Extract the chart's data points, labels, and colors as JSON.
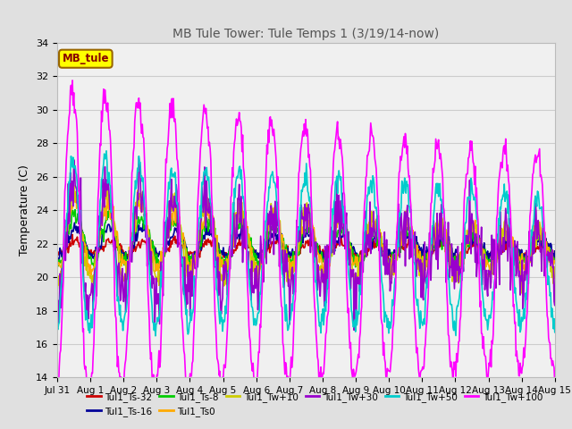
{
  "title": "MB Tule Tower: Tule Temps 1 (3/19/14-now)",
  "ylabel": "Temperature (C)",
  "ylim": [
    14,
    34
  ],
  "yticks": [
    14,
    16,
    18,
    20,
    22,
    24,
    26,
    28,
    30,
    32,
    34
  ],
  "legend_box_label": "MB_tule",
  "legend_box_color": "#ffff00",
  "legend_box_border": "#996600",
  "series": [
    {
      "label": "Tul1_Ts-32",
      "color": "#cc0000"
    },
    {
      "label": "Tul1_Ts-16",
      "color": "#000099"
    },
    {
      "label": "Tul1_Ts-8",
      "color": "#00cc00"
    },
    {
      "label": "Tul1_Ts0",
      "color": "#ffaa00"
    },
    {
      "label": "Tul1_Tw+10",
      "color": "#cccc00"
    },
    {
      "label": "Tul1_Tw+30",
      "color": "#9900cc"
    },
    {
      "label": "Tul1_Tw+50",
      "color": "#00cccc"
    },
    {
      "label": "Tul1_Tw+100",
      "color": "#ff00ff"
    }
  ],
  "x_tick_labels": [
    "Jul 31",
    "Aug 1",
    "Aug 2",
    "Aug 3",
    "Aug 4",
    "Aug 5",
    "Aug 6",
    "Aug 7",
    "Aug 8",
    "Aug 9",
    "Aug 10",
    "Aug 11",
    "Aug 12",
    "Aug 13",
    "Aug 14",
    "Aug 15"
  ],
  "n_days": 16,
  "background_color": "#e0e0e0",
  "plot_bg_color": "#f0f0f0",
  "grid_color": "#cccccc"
}
